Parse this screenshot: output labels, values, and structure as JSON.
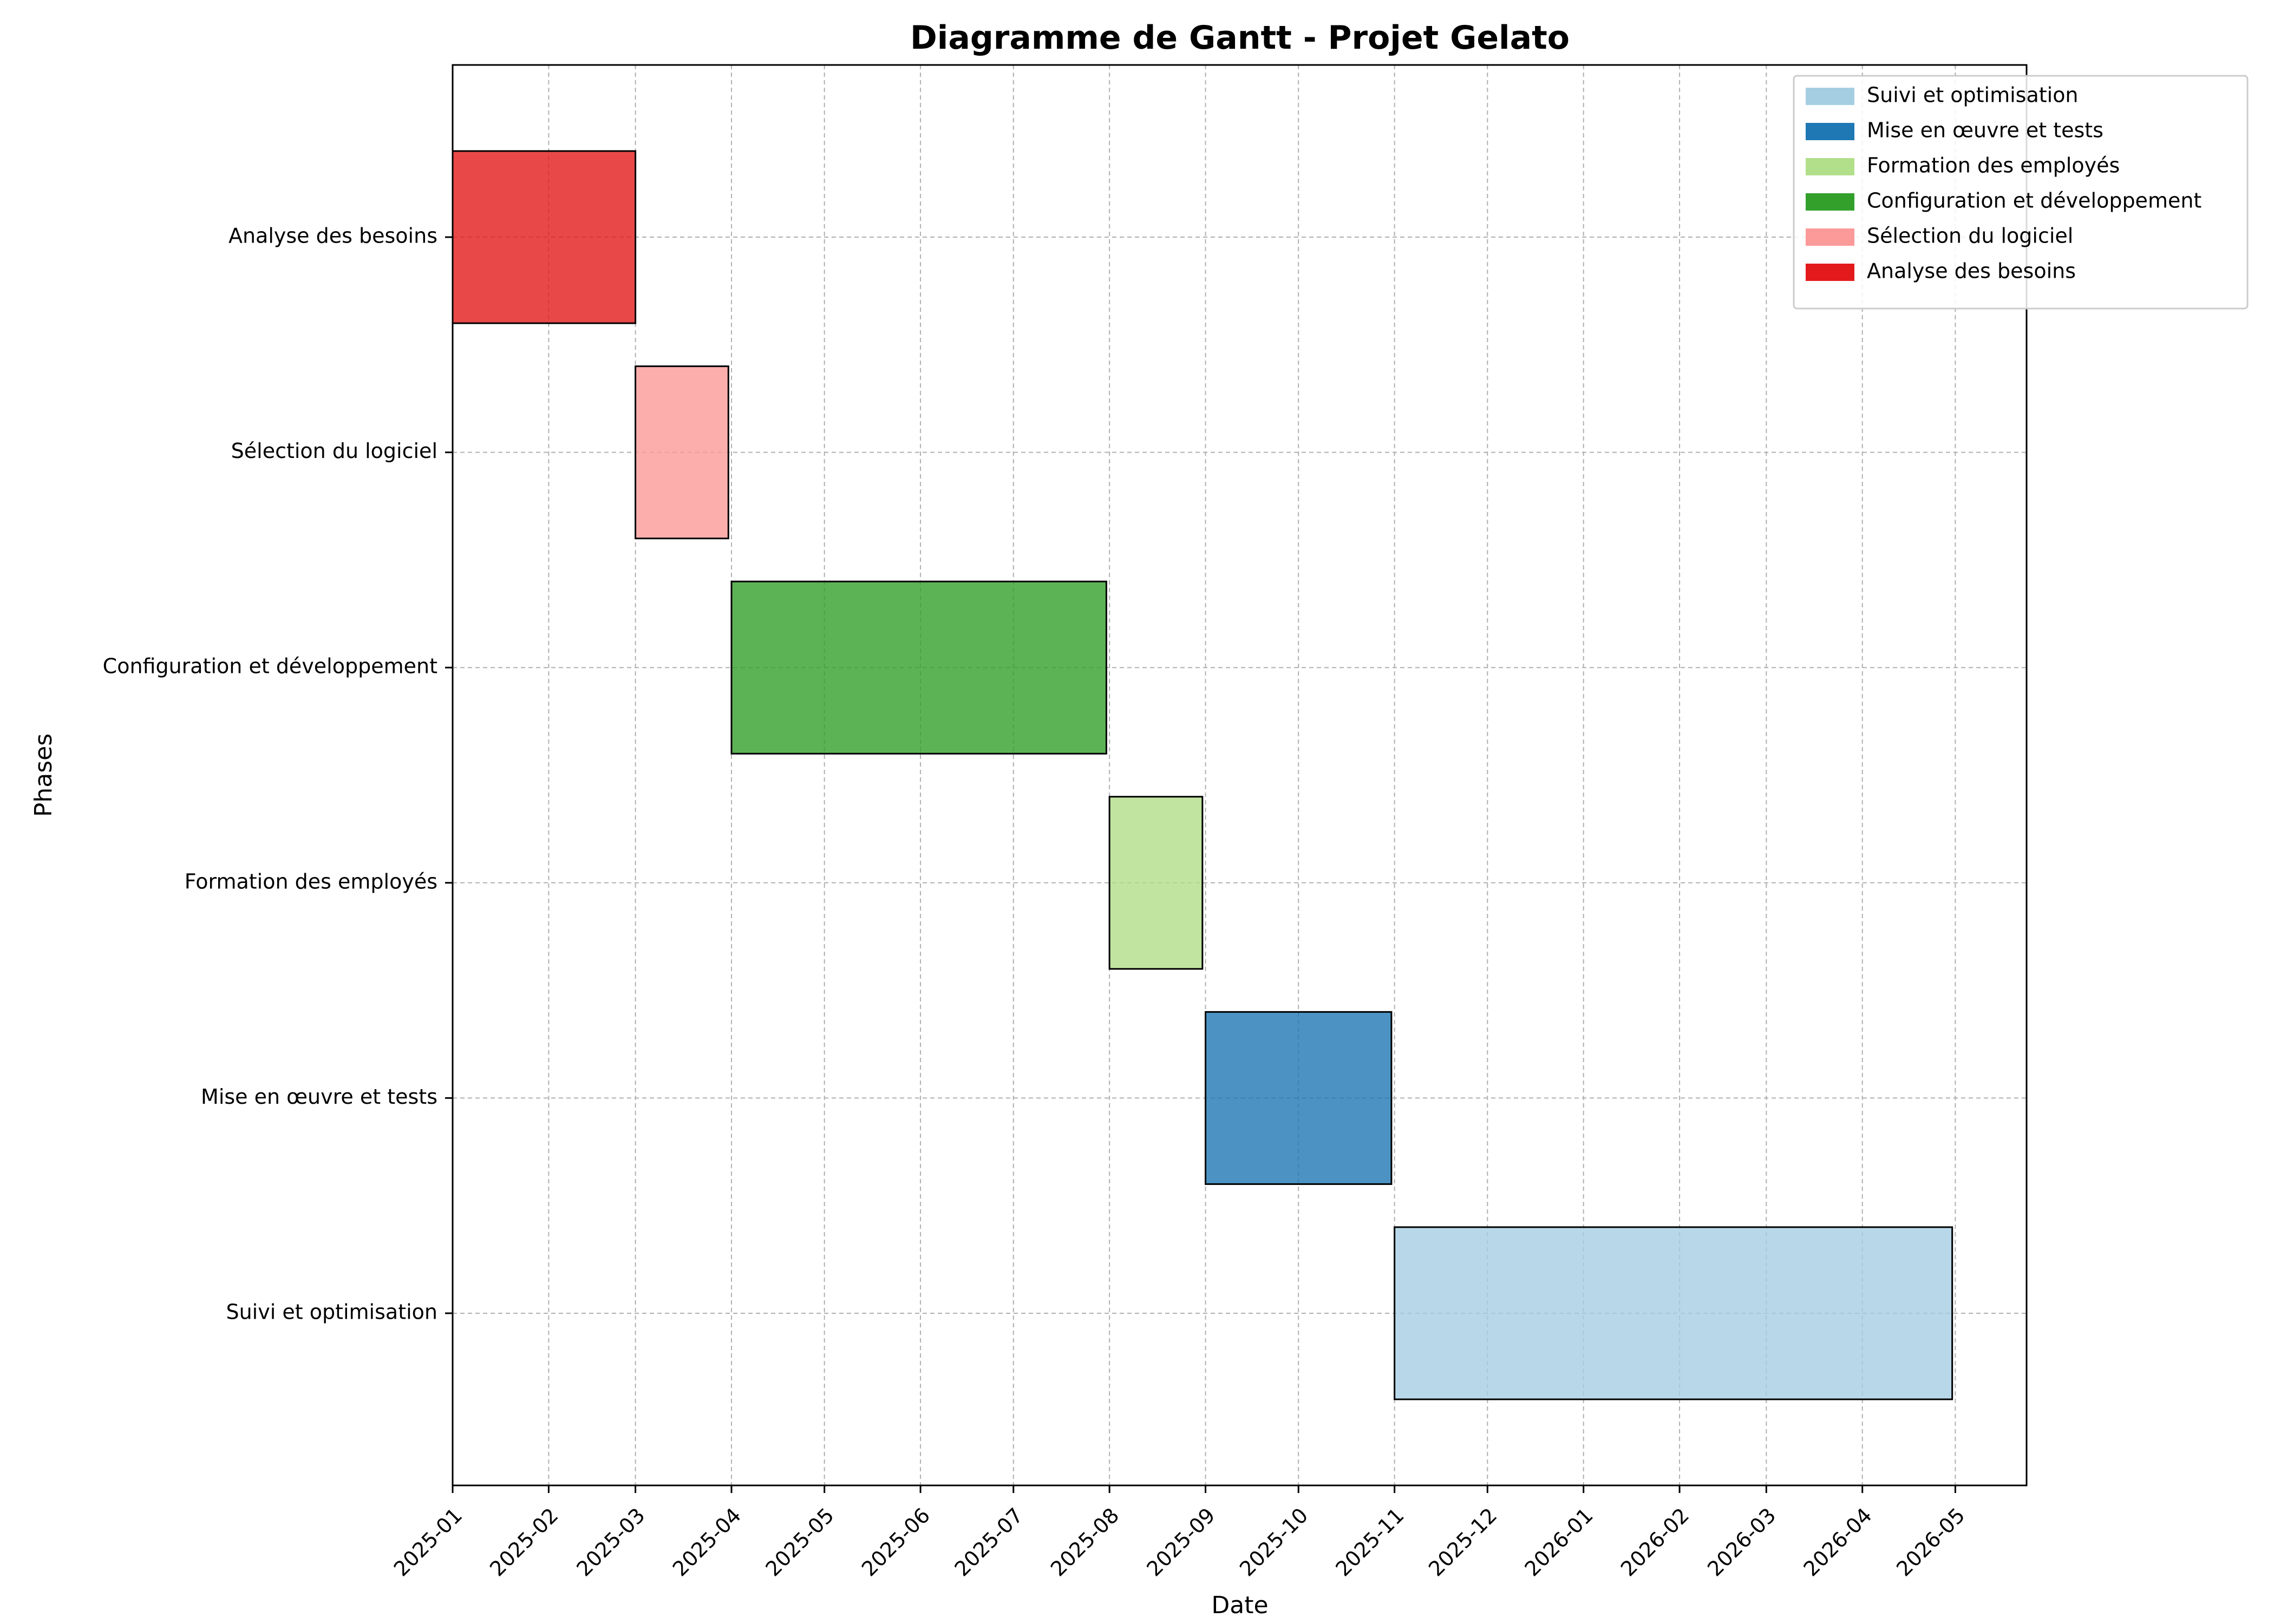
{
  "chart_data": {
    "type": "bar",
    "orientation": "horizontal",
    "title": "Diagramme de Gantt - Projet Gelato",
    "xlabel": "Date",
    "ylabel": "Phases",
    "xlim": [
      "2025-01-01",
      "2026-05-24"
    ],
    "x_ticks": [
      "2025-01",
      "2025-02",
      "2025-03",
      "2025-04",
      "2025-05",
      "2025-06",
      "2025-07",
      "2025-08",
      "2025-09",
      "2025-10",
      "2025-11",
      "2025-12",
      "2026-01",
      "2026-02",
      "2026-03",
      "2026-04",
      "2026-05"
    ],
    "grid": true,
    "legend_position": "top-right",
    "tasks": [
      {
        "name": "Analyse des besoins",
        "start": "2025-01-01",
        "end": "2025-03-01",
        "color": "#e31a1c"
      },
      {
        "name": "Sélection du logiciel",
        "start": "2025-03-01",
        "end": "2025-03-31",
        "color": "#fb9a99"
      },
      {
        "name": "Configuration et développement",
        "start": "2025-04-01",
        "end": "2025-07-31",
        "color": "#33a02c"
      },
      {
        "name": "Formation des employés",
        "start": "2025-08-01",
        "end": "2025-08-31",
        "color": "#b2df8a"
      },
      {
        "name": "Mise en œuvre et tests",
        "start": "2025-09-01",
        "end": "2025-10-31",
        "color": "#1f78b4"
      },
      {
        "name": "Suivi et optimisation",
        "start": "2025-11-01",
        "end": "2026-04-30",
        "color": "#a6cee3"
      }
    ],
    "legend": [
      "Suivi et optimisation",
      "Mise en œuvre et tests",
      "Formation des employés",
      "Configuration et développement",
      "Sélection du logiciel",
      "Analyse des besoins"
    ]
  }
}
